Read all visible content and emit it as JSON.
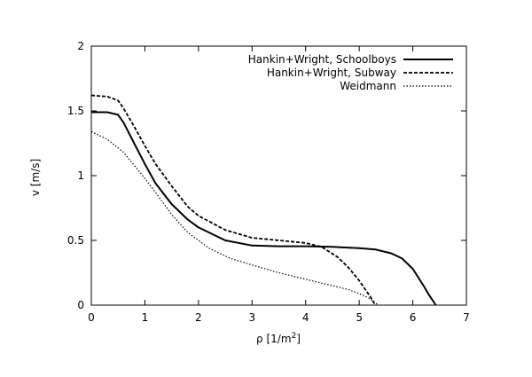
{
  "chart_data": {
    "type": "line",
    "xlabel": "ρ [1/m",
    "xlabel_sup": "2",
    "xlabel_end": "]",
    "ylabel": "v [m/s]",
    "xlim": [
      0,
      7
    ],
    "ylim": [
      0,
      2
    ],
    "xticks": [
      "0",
      "1",
      "2",
      "3",
      "4",
      "5",
      "6",
      "7"
    ],
    "yticks": [
      "0",
      "0.5",
      "1",
      "1.5",
      "2"
    ],
    "grid": false,
    "legend_position": "top-right",
    "series": [
      {
        "name": "Hankin+Wright, Schoolboys",
        "style": "solid",
        "color": "#000000",
        "x": [
          0,
          0.3,
          0.5,
          0.6,
          0.8,
          1.0,
          1.2,
          1.5,
          1.8,
          2.0,
          2.5,
          3.0,
          3.5,
          4.0,
          4.5,
          5.0,
          5.3,
          5.6,
          5.8,
          6.0,
          6.2,
          6.3,
          6.43
        ],
        "y": [
          1.49,
          1.49,
          1.47,
          1.41,
          1.25,
          1.09,
          0.94,
          0.78,
          0.66,
          0.6,
          0.5,
          0.46,
          0.455,
          0.455,
          0.45,
          0.44,
          0.43,
          0.4,
          0.36,
          0.28,
          0.15,
          0.08,
          0.0
        ]
      },
      {
        "name": "Hankin+Wright, Subway",
        "style": "dashed",
        "color": "#000000",
        "x": [
          0,
          0.3,
          0.5,
          0.6,
          0.8,
          1.0,
          1.2,
          1.5,
          1.8,
          2.0,
          2.5,
          3.0,
          3.5,
          4.0,
          4.3,
          4.6,
          4.8,
          5.0,
          5.2,
          5.3
        ],
        "y": [
          1.62,
          1.61,
          1.58,
          1.52,
          1.38,
          1.23,
          1.09,
          0.92,
          0.76,
          0.69,
          0.58,
          0.52,
          0.5,
          0.48,
          0.45,
          0.37,
          0.29,
          0.19,
          0.07,
          0.0
        ]
      },
      {
        "name": "Weidmann",
        "style": "dotted",
        "color": "#000000",
        "x": [
          0,
          0.3,
          0.6,
          0.9,
          1.2,
          1.5,
          1.8,
          2.2,
          2.6,
          3.0,
          3.5,
          4.0,
          4.5,
          4.8,
          5.0,
          5.2,
          5.36
        ],
        "y": [
          1.34,
          1.28,
          1.18,
          1.03,
          0.87,
          0.7,
          0.56,
          0.44,
          0.36,
          0.31,
          0.25,
          0.2,
          0.15,
          0.12,
          0.09,
          0.05,
          0.0
        ]
      }
    ]
  }
}
